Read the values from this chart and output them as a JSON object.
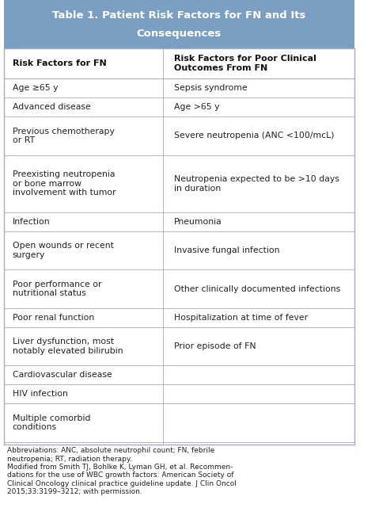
{
  "title_line1": "Table 1. Patient Risk Factors for FN and Its",
  "title_line2": "Consequences",
  "title_bg": "#7a9fc2",
  "title_color": "#ffffff",
  "header_col1": "Risk Factors for FN",
  "header_col2": "Risk Factors for Poor Clinical\nOutcomes From FN",
  "rows": [
    [
      "Age ≥65 y",
      "Sepsis syndrome"
    ],
    [
      "Advanced disease",
      "Age >65 y"
    ],
    [
      "Previous chemotherapy\nor RT",
      "Severe neutropenia (ANC <100/mcL)"
    ],
    [
      "Preexisting neutropenia\nor bone marrow\ninvolvement with tumor",
      "Neutropenia expected to be >10 days\nin duration"
    ],
    [
      "Infection",
      "Pneumonia"
    ],
    [
      "Open wounds or recent\nsurgery",
      "Invasive fungal infection"
    ],
    [
      "Poor performance or\nnutritional status",
      "Other clinically documented infections"
    ],
    [
      "Poor renal function",
      "Hospitalization at time of fever"
    ],
    [
      "Liver dysfunction, most\nnotably elevated bilirubin",
      "Prior episode of FN"
    ],
    [
      "Cardiovascular disease",
      ""
    ],
    [
      "HIV infection",
      ""
    ],
    [
      "Multiple comorbid\nconditions",
      ""
    ]
  ],
  "footnote": "Abbreviations: ANC, absolute neutrophil count; FN, febrile\nneutropenia; RT, radiation therapy.\nModified from Smith TJ, Bohlke K, Lyman GH, et al. Recommen-\ndations for the use of WBC growth factors: American Society of\nClinical Oncology clinical practice guideline update. J Clin Oncol\n2015;33:3199–3212; with permission.",
  "bg_color": "#ffffff",
  "line_color": "#aaaacc",
  "text_color": "#222222",
  "header_text_color": "#111111",
  "col_split": 0.455
}
